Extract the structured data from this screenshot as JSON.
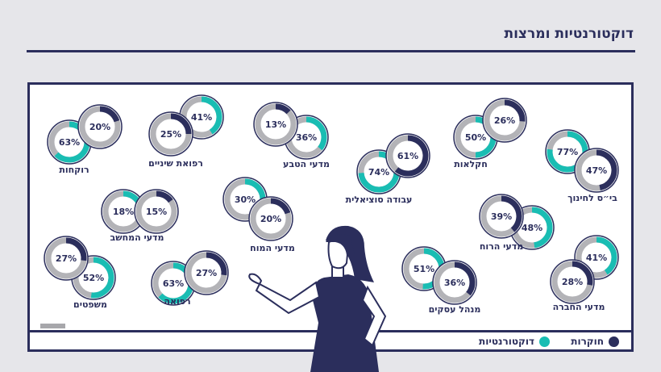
{
  "page": {
    "title": "דוקטורנטיות ומרצות"
  },
  "colors": {
    "navy": "#2b2e5c",
    "teal": "#19bdb3",
    "track": "#b3b3b7",
    "background": "#e6e6ea",
    "board": "#ffffff"
  },
  "chart_data": {
    "type": "pie",
    "title": "דוקטורנטיות ומרצות",
    "value_unit": "%",
    "legend": {
      "position": "bottom-right",
      "entries": [
        {
          "name": "חוקרות",
          "color": "#2b2e5c"
        },
        {
          "name": "דוקטורנטיות",
          "color": "#19bdb3"
        }
      ]
    },
    "categories": [
      {
        "name": "רוקחות",
        "researchers": 20,
        "doctoral": 63
      },
      {
        "name": "רפואת שיניים",
        "researchers": 25,
        "doctoral": 41
      },
      {
        "name": "מדעי הטבע",
        "researchers": 13,
        "doctoral": 36
      },
      {
        "name": "עבודה סוציאלית",
        "researchers": 61,
        "doctoral": 74
      },
      {
        "name": "חקלאות",
        "researchers": 26,
        "doctoral": 50
      },
      {
        "name": "בי״ס לחינוך",
        "researchers": 47,
        "doctoral": 77
      },
      {
        "name": "מדעי המחשב",
        "researchers": 15,
        "doctoral": 18
      },
      {
        "name": "מדעי המוח",
        "researchers": 20,
        "doctoral": 30
      },
      {
        "name": "מדעי הרוח",
        "researchers": 39,
        "doctoral": 48
      },
      {
        "name": "משפטים",
        "researchers": 27,
        "doctoral": 52
      },
      {
        "name": "רפואה",
        "researchers": 27,
        "doctoral": 63
      },
      {
        "name": "מנהל עסקים",
        "researchers": 36,
        "doctoral": 51
      },
      {
        "name": "מדעי החברה",
        "researchers": 28,
        "doctoral": 41
      }
    ]
  }
}
